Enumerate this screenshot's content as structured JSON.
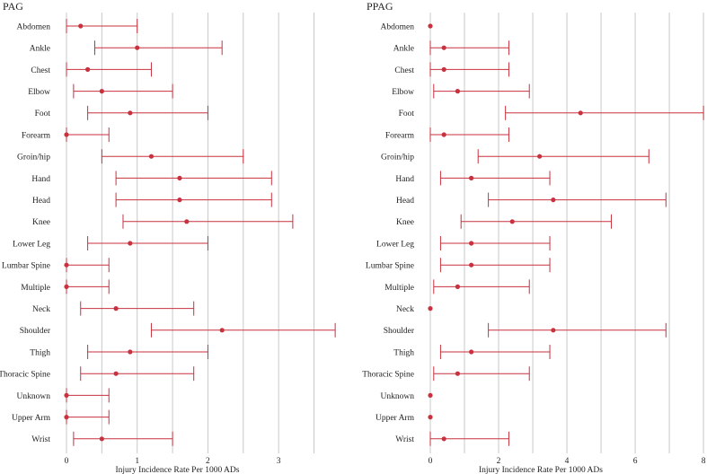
{
  "colors": {
    "accent": "#c8313e",
    "grid": "#c8c8c8",
    "text": "#222222"
  },
  "chart_data": [
    {
      "type": "forest",
      "title": "PAG",
      "xlabel": "Injury Incidence Rate Per 1000 ADs",
      "xlim": [
        0,
        3.9
      ],
      "xticks": [
        0,
        1,
        2,
        3
      ],
      "gridlines": [
        0,
        0.5,
        1,
        1.5,
        2,
        2.5,
        3,
        3.5
      ],
      "grid": true,
      "categories": [
        "Abdomen",
        "Ankle",
        "Chest",
        "Elbow",
        "Foot",
        "Forearm",
        "Groin/hip",
        "Hand",
        "Head",
        "Knee",
        "Lower Leg",
        "Lumbar Spine",
        "Multiple",
        "Neck",
        "Shoulder",
        "Thigh",
        "Thoracic Spine",
        "Unknown",
        "Upper Arm",
        "Wrist"
      ],
      "values": [
        0.2,
        1.0,
        0.3,
        0.5,
        0.9,
        0.0,
        1.2,
        1.6,
        1.6,
        1.7,
        0.9,
        0.0,
        0.0,
        0.7,
        2.2,
        0.9,
        0.7,
        0.0,
        0.0,
        0.5
      ],
      "lower": [
        0.0,
        0.4,
        0.0,
        0.1,
        0.3,
        0.0,
        0.5,
        0.7,
        0.7,
        0.8,
        0.3,
        0.0,
        0.0,
        0.2,
        1.2,
        0.3,
        0.2,
        0.0,
        0.0,
        0.1
      ],
      "upper": [
        1.0,
        2.2,
        1.2,
        1.5,
        2.0,
        0.6,
        2.5,
        2.9,
        2.9,
        3.2,
        2.0,
        0.6,
        0.6,
        1.8,
        3.8,
        2.0,
        1.8,
        0.6,
        0.6,
        1.5
      ]
    },
    {
      "type": "forest",
      "title": "PPAG",
      "xlabel": "Injury Incidence Rate Per 1000 ADs",
      "xlim": [
        0,
        8.05
      ],
      "xticks": [
        0,
        2,
        4,
        6,
        8
      ],
      "gridlines": [
        0,
        1,
        2,
        3,
        4,
        5,
        6,
        7,
        8
      ],
      "grid": true,
      "categories": [
        "Abdomen",
        "Ankle",
        "Chest",
        "Elbow",
        "Foot",
        "Forearm",
        "Groin/hip",
        "Hand",
        "Head",
        "Knee",
        "Lower Leg",
        "Lumbar Spine",
        "Multiple",
        "Neck",
        "Shoulder",
        "Thigh",
        "Thoracic Spine",
        "Unknown",
        "Upper Arm",
        "Wrist"
      ],
      "values": [
        0.0,
        0.4,
        0.4,
        0.8,
        4.4,
        0.4,
        3.2,
        1.2,
        3.6,
        2.4,
        1.2,
        1.2,
        0.8,
        0.0,
        3.6,
        1.2,
        0.8,
        0.0,
        0.0,
        0.4
      ],
      "lower": [
        null,
        0.0,
        0.0,
        0.1,
        2.2,
        0.0,
        1.4,
        0.3,
        1.7,
        0.9,
        0.3,
        0.3,
        0.1,
        null,
        1.7,
        0.3,
        0.1,
        null,
        null,
        0.0
      ],
      "upper": [
        null,
        2.3,
        2.3,
        2.9,
        8.0,
        2.3,
        6.4,
        3.5,
        6.9,
        5.3,
        3.5,
        3.5,
        2.9,
        null,
        6.9,
        3.5,
        2.9,
        null,
        null,
        2.3
      ]
    }
  ]
}
